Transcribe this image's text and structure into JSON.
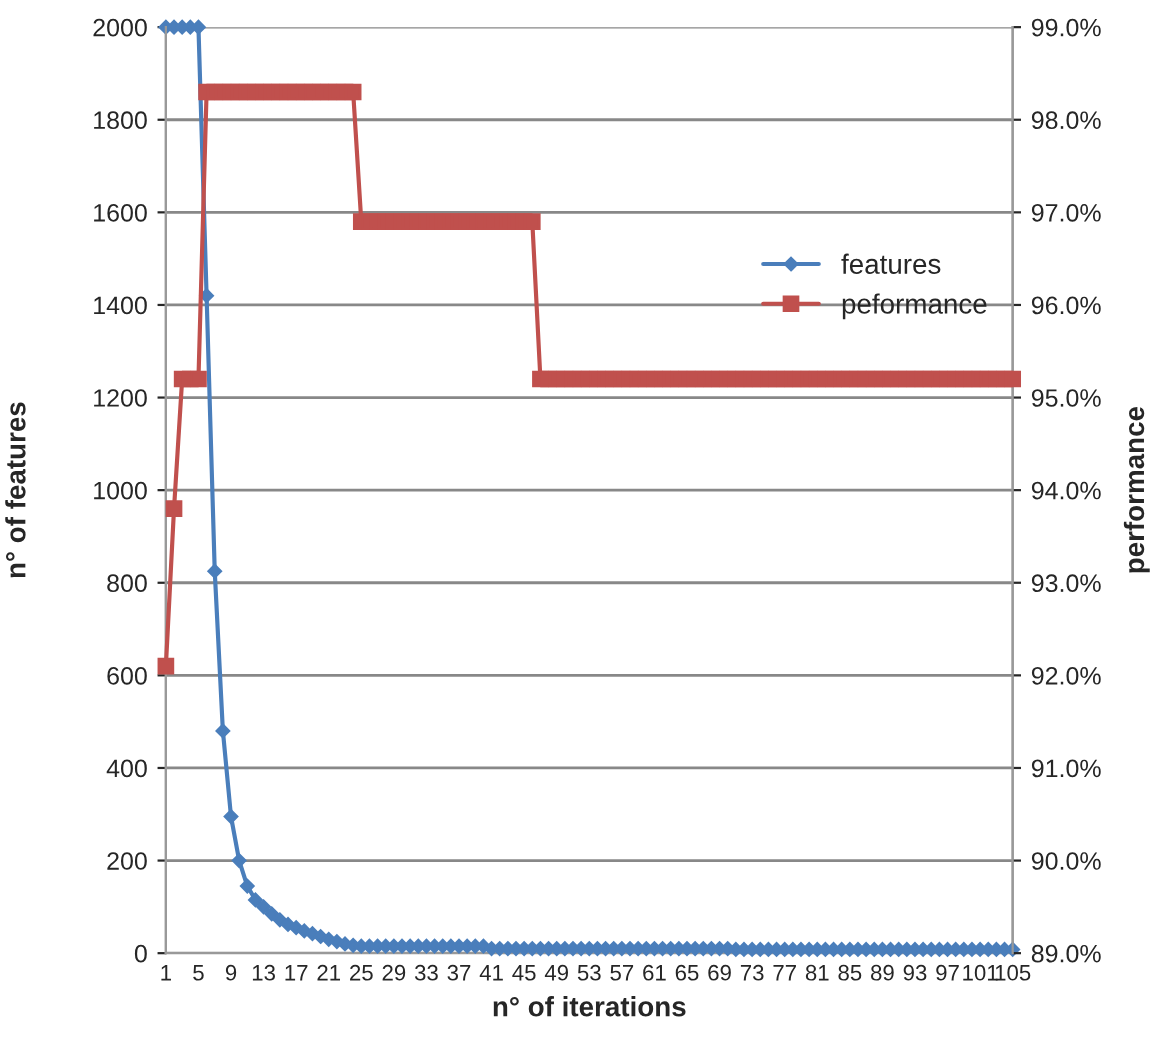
{
  "chart_data": {
    "type": "line",
    "xlabel": "n° of iterations",
    "ylabel": "n° of features",
    "y2label": "performance",
    "categories": [
      "1",
      null,
      null,
      null,
      "5",
      null,
      null,
      null,
      "9",
      null,
      null,
      null,
      "13",
      null,
      null,
      null,
      "17",
      null,
      null,
      null,
      "21",
      null,
      null,
      null,
      "25",
      null,
      null,
      null,
      "29",
      null,
      null,
      null,
      "33",
      null,
      null,
      null,
      "37",
      null,
      null,
      null,
      "41",
      null,
      null,
      null,
      "45",
      null,
      null,
      null,
      "49",
      null,
      null,
      null,
      "53",
      null,
      null,
      null,
      "57",
      null,
      null,
      null,
      "61",
      null,
      null,
      null,
      "65",
      null,
      null,
      null,
      "69",
      null,
      null,
      null,
      "73",
      null,
      null,
      null,
      "77",
      null,
      null,
      null,
      "81",
      null,
      null,
      null,
      "85",
      null,
      null,
      null,
      "89",
      null,
      null,
      null,
      "93",
      null,
      null,
      null,
      "97",
      null,
      null,
      null,
      "101",
      null,
      null,
      null,
      "105"
    ],
    "series": [
      {
        "name": "features",
        "color": "#4a7ebb",
        "marker": "diamond",
        "values": [
          2000,
          2000,
          2000,
          2000,
          2000,
          1420,
          825,
          480,
          295,
          200,
          145,
          115,
          100,
          85,
          72,
          62,
          55,
          48,
          42,
          36,
          30,
          25,
          20,
          17,
          15,
          15,
          15,
          15,
          15,
          15,
          15,
          15,
          15,
          15,
          15,
          15,
          15,
          15,
          15,
          15,
          10,
          10,
          10,
          10,
          10,
          10,
          10,
          10,
          10,
          10,
          10,
          10,
          10,
          10,
          10,
          10,
          10,
          10,
          10,
          10,
          10,
          10,
          10,
          10,
          10,
          10,
          10,
          10,
          10,
          10,
          8,
          8,
          8,
          8,
          8,
          8,
          8,
          8,
          8,
          8,
          8,
          8,
          8,
          8,
          8,
          8,
          8,
          8,
          8,
          8,
          8,
          8,
          8,
          8,
          8,
          8,
          8,
          8,
          8,
          8,
          8,
          8,
          8,
          8,
          8
        ]
      },
      {
        "name": "peformance",
        "color": "#c0504d",
        "marker": "square",
        "axis": "y2",
        "values": [
          92.1,
          93.8,
          95.2,
          95.2,
          95.2,
          98.3,
          98.3,
          98.3,
          98.3,
          98.3,
          98.3,
          98.3,
          98.3,
          98.3,
          98.3,
          98.3,
          98.3,
          98.3,
          98.3,
          98.3,
          98.3,
          98.3,
          98.3,
          98.3,
          96.9,
          96.9,
          96.9,
          96.9,
          96.9,
          96.9,
          96.9,
          96.9,
          96.9,
          96.9,
          96.9,
          96.9,
          96.9,
          96.9,
          96.9,
          96.9,
          96.9,
          96.9,
          96.9,
          96.9,
          96.9,
          96.9,
          95.2,
          95.2,
          95.2,
          95.2,
          95.2,
          95.2,
          95.2,
          95.2,
          95.2,
          95.2,
          95.2,
          95.2,
          95.2,
          95.2,
          95.2,
          95.2,
          95.2,
          95.2,
          95.2,
          95.2,
          95.2,
          95.2,
          95.2,
          95.2,
          95.2,
          95.2,
          95.2,
          95.2,
          95.2,
          95.2,
          95.2,
          95.2,
          95.2,
          95.2,
          95.2,
          95.2,
          95.2,
          95.2,
          95.2,
          95.2,
          95.2,
          95.2,
          95.2,
          95.2,
          95.2,
          95.2,
          95.2,
          95.2,
          95.2,
          95.2,
          95.2,
          95.2,
          95.2,
          95.2,
          95.2,
          95.2,
          95.2,
          95.2,
          95.2
        ]
      }
    ],
    "ylim": [
      0,
      2000
    ],
    "yticks": [
      0,
      200,
      400,
      600,
      800,
      1000,
      1200,
      1400,
      1600,
      1800,
      2000
    ],
    "y2lim": [
      89,
      99
    ],
    "y2ticks": [
      {
        "value": 89,
        "label": "89.0%"
      },
      {
        "value": 90,
        "label": "90.0%"
      },
      {
        "value": 91,
        "label": "91.0%"
      },
      {
        "value": 92,
        "label": "92.0%"
      },
      {
        "value": 93,
        "label": "93.0%"
      },
      {
        "value": 94,
        "label": "94.0%"
      },
      {
        "value": 95,
        "label": "95.0%"
      },
      {
        "value": 96,
        "label": "96.0%"
      },
      {
        "value": 97,
        "label": "97.0%"
      },
      {
        "value": 98,
        "label": "98.0%"
      },
      {
        "value": 99,
        "label": "99.0%"
      }
    ],
    "grid": "y",
    "legend": "right",
    "line_style": "solid"
  }
}
